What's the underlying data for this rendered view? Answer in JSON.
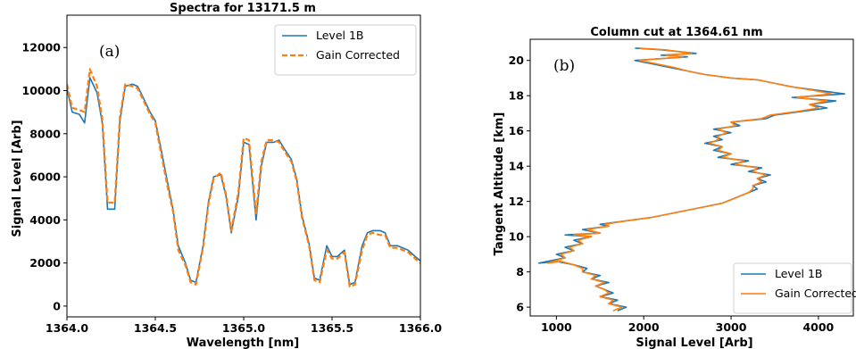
{
  "chart_data": [
    {
      "type": "line",
      "panel_label": "(a)",
      "title": "Spectra for 13171.5 m",
      "xlabel": "Wavelength [nm]",
      "ylabel": "Signal Level [Arb]",
      "xlim": [
        1364.0,
        1366.0
      ],
      "ylim": [
        -500,
        13500
      ],
      "xticks": [
        "1364.0",
        "1364.5",
        "1365.0",
        "1365.5",
        "1366.0"
      ],
      "yticks": [
        "0",
        "2000",
        "4000",
        "6000",
        "8000",
        "10000",
        "12000"
      ],
      "grid": false,
      "legend_position": "top-right",
      "series": [
        {
          "name": "Level 1B",
          "color": "#1f77b4",
          "style": "solid",
          "x": [
            1364.0,
            1364.03,
            1364.07,
            1364.1,
            1364.13,
            1364.17,
            1364.2,
            1364.23,
            1364.27,
            1364.3,
            1364.33,
            1364.37,
            1364.4,
            1364.43,
            1364.47,
            1364.5,
            1364.53,
            1364.57,
            1364.6,
            1364.63,
            1364.67,
            1364.7,
            1364.73,
            1364.77,
            1364.8,
            1364.83,
            1364.87,
            1364.9,
            1364.93,
            1364.97,
            1365.0,
            1365.03,
            1365.07,
            1365.1,
            1365.13,
            1365.17,
            1365.2,
            1365.23,
            1365.27,
            1365.3,
            1365.33,
            1365.37,
            1365.4,
            1365.43,
            1365.47,
            1365.5,
            1365.53,
            1365.57,
            1365.6,
            1365.63,
            1365.67,
            1365.7,
            1365.73,
            1365.77,
            1365.8,
            1365.83,
            1365.87,
            1365.9,
            1365.93,
            1365.97,
            1366.0
          ],
          "y": [
            10100,
            9000,
            8900,
            8500,
            10600,
            9900,
            8500,
            4500,
            4500,
            8600,
            10200,
            10300,
            10200,
            9700,
            9000,
            8600,
            7400,
            5700,
            4500,
            2800,
            2000,
            1200,
            1100,
            2800,
            4800,
            6000,
            6100,
            5100,
            3400,
            5100,
            7600,
            7500,
            4000,
            6500,
            7600,
            7600,
            7700,
            7300,
            6800,
            5900,
            4200,
            2900,
            1300,
            1200,
            2800,
            2300,
            2300,
            2600,
            1000,
            1100,
            2800,
            3400,
            3500,
            3500,
            3400,
            2800,
            2800,
            2700,
            2600,
            2300,
            2100
          ]
        },
        {
          "name": "Gain Corrected",
          "color": "#ff7f0e",
          "style": "dashed",
          "x": [
            1364.0,
            1364.03,
            1364.07,
            1364.1,
            1364.13,
            1364.17,
            1364.2,
            1364.23,
            1364.27,
            1364.3,
            1364.33,
            1364.37,
            1364.4,
            1364.43,
            1364.47,
            1364.5,
            1364.53,
            1364.57,
            1364.6,
            1364.63,
            1364.67,
            1364.7,
            1364.73,
            1364.77,
            1364.8,
            1364.83,
            1364.87,
            1364.9,
            1364.93,
            1364.97,
            1365.0,
            1365.03,
            1365.07,
            1365.1,
            1365.13,
            1365.17,
            1365.2,
            1365.23,
            1365.27,
            1365.3,
            1365.33,
            1365.37,
            1365.4,
            1365.43,
            1365.47,
            1365.5,
            1365.53,
            1365.57,
            1365.6,
            1365.63,
            1365.67,
            1365.7,
            1365.73,
            1365.77,
            1365.8,
            1365.83,
            1365.87,
            1365.9,
            1365.93,
            1365.97,
            1366.0
          ],
          "y": [
            10300,
            9200,
            9100,
            9000,
            11000,
            10200,
            8700,
            4800,
            4800,
            8800,
            10300,
            10200,
            10100,
            9600,
            8900,
            8500,
            7200,
            5500,
            4400,
            2600,
            1900,
            1100,
            1000,
            2700,
            4700,
            5900,
            6200,
            5200,
            3500,
            5300,
            7800,
            7700,
            4300,
            6700,
            7700,
            7700,
            7600,
            7200,
            6700,
            5800,
            4100,
            2800,
            1200,
            1100,
            2600,
            2200,
            2200,
            2500,
            900,
            1000,
            2600,
            3300,
            3400,
            3300,
            3300,
            2700,
            2700,
            2600,
            2500,
            2200,
            2000
          ]
        }
      ]
    },
    {
      "type": "line",
      "panel_label": "(b)",
      "title": "Column cut at 1364.61 nm",
      "xlabel": "Signal Level [Arb]",
      "ylabel": "Tangent Altitude [km]",
      "xlim": [
        700,
        4400
      ],
      "ylim": [
        5.5,
        21.2
      ],
      "xticks": [
        "1000",
        "2000",
        "3000",
        "4000"
      ],
      "yticks": [
        "6",
        "8",
        "10",
        "12",
        "14",
        "16",
        "18",
        "20"
      ],
      "grid": false,
      "legend_position": "bottom-right",
      "series": [
        {
          "name": "Level 1B",
          "color": "#1f77b4",
          "style": "solid",
          "x": [
            1700,
            1800,
            1600,
            1700,
            1500,
            1650,
            1550,
            1450,
            1600,
            1400,
            1500,
            1300,
            1350,
            1200,
            1000,
            800,
            1100,
            1000,
            1200,
            1100,
            1300,
            1200,
            1400,
            1100,
            1500,
            1300,
            1600,
            1500,
            1800,
            2100,
            2300,
            2500,
            2700,
            2900,
            3000,
            3100,
            3200,
            3300,
            3250,
            3400,
            3300,
            3450,
            3200,
            3350,
            3000,
            3200,
            2850,
            3000,
            2800,
            2900,
            2700,
            2900,
            2800,
            3000,
            2800,
            3100,
            3000,
            3400,
            3500,
            3800,
            4100,
            3900,
            4200,
            3700,
            4300,
            4000,
            3700,
            3500,
            3300,
            3000,
            2700,
            2500,
            2300,
            2100,
            2000,
            1900,
            2200,
            2500,
            2200,
            2600,
            2400,
            2200,
            1900
          ],
          "y": [
            5.8,
            6.0,
            6.2,
            6.4,
            6.6,
            6.8,
            7.0,
            7.2,
            7.4,
            7.6,
            7.8,
            8.0,
            8.2,
            8.4,
            8.6,
            8.5,
            8.8,
            9.0,
            9.2,
            9.4,
            9.6,
            9.8,
            10.0,
            10.1,
            10.2,
            10.4,
            10.6,
            10.7,
            10.9,
            11.1,
            11.3,
            11.5,
            11.7,
            11.9,
            12.1,
            12.3,
            12.5,
            12.7,
            12.9,
            13.1,
            13.3,
            13.5,
            13.7,
            13.9,
            14.1,
            14.3,
            14.5,
            14.7,
            14.9,
            15.1,
            15.3,
            15.5,
            15.7,
            15.9,
            16.1,
            16.3,
            16.5,
            16.7,
            16.9,
            17.1,
            17.3,
            17.5,
            17.7,
            17.9,
            18.1,
            18.3,
            18.5,
            18.7,
            18.9,
            19.0,
            19.2,
            19.4,
            19.6,
            19.8,
            19.9,
            20.0,
            20.1,
            20.2,
            20.3,
            20.4,
            20.5,
            20.6,
            20.7
          ]
        },
        {
          "name": "Gain Corrected",
          "color": "#ff7f0e",
          "style": "solid",
          "x": [
            1650,
            1750,
            1600,
            1650,
            1500,
            1600,
            1550,
            1450,
            1550,
            1400,
            1450,
            1300,
            1300,
            1200,
            1050,
            900,
            1100,
            1050,
            1200,
            1150,
            1300,
            1250,
            1400,
            1200,
            1500,
            1350,
            1600,
            1550,
            1800,
            2100,
            2300,
            2500,
            2700,
            2900,
            3000,
            3100,
            3200,
            3250,
            3250,
            3350,
            3300,
            3400,
            3250,
            3300,
            3050,
            3150,
            2900,
            3000,
            2850,
            2900,
            2750,
            2850,
            2850,
            2950,
            2850,
            3050,
            3000,
            3350,
            3450,
            3750,
            4000,
            3900,
            4100,
            3750,
            4150,
            3950,
            3700,
            3500,
            3300,
            3000,
            2700,
            2500,
            2350,
            2150,
            2050,
            1950,
            2200,
            2450,
            2250,
            2550,
            2400,
            2250,
            1950
          ],
          "y": [
            5.8,
            6.0,
            6.2,
            6.4,
            6.6,
            6.8,
            7.0,
            7.2,
            7.4,
            7.6,
            7.8,
            8.0,
            8.2,
            8.4,
            8.6,
            8.5,
            8.8,
            9.0,
            9.2,
            9.4,
            9.6,
            9.8,
            10.0,
            10.1,
            10.2,
            10.4,
            10.6,
            10.7,
            10.9,
            11.1,
            11.3,
            11.5,
            11.7,
            11.9,
            12.1,
            12.3,
            12.5,
            12.7,
            12.9,
            13.1,
            13.3,
            13.5,
            13.7,
            13.9,
            14.1,
            14.3,
            14.5,
            14.7,
            14.9,
            15.1,
            15.3,
            15.5,
            15.7,
            15.9,
            16.1,
            16.3,
            16.5,
            16.7,
            16.9,
            17.1,
            17.3,
            17.5,
            17.7,
            17.9,
            18.1,
            18.3,
            18.5,
            18.7,
            18.9,
            19.0,
            19.2,
            19.4,
            19.6,
            19.8,
            19.9,
            20.0,
            20.1,
            20.2,
            20.3,
            20.4,
            20.5,
            20.6,
            20.7
          ]
        }
      ]
    }
  ]
}
